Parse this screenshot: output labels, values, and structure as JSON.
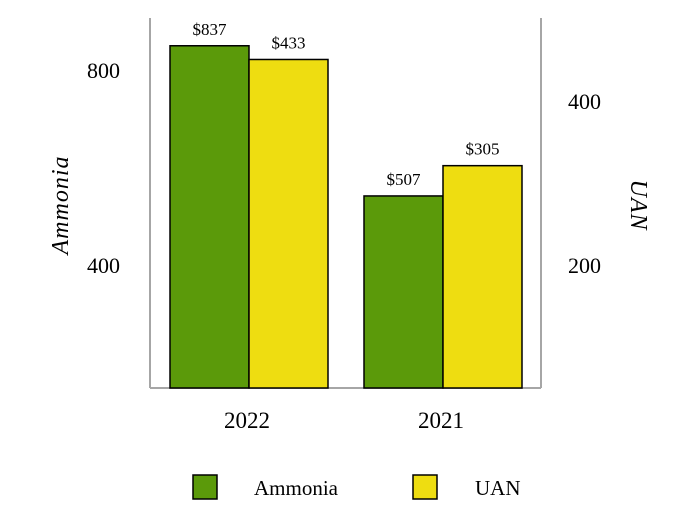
{
  "chart_data": {
    "type": "bar",
    "categories": [
      "2022",
      "2021"
    ],
    "series": [
      {
        "name": "Ammonia",
        "values": [
          837,
          507
        ],
        "labels": [
          "$837",
          "$507"
        ],
        "color": "#5b9a0a",
        "axis": "left"
      },
      {
        "name": "UAN",
        "values": [
          433,
          305
        ],
        "labels": [
          "$433",
          "$305"
        ],
        "color": "#eedd11",
        "axis": "right"
      }
    ],
    "y_left": {
      "label": "Ammonia",
      "ticks": [
        "400",
        "800"
      ],
      "tick_values": [
        400,
        800
      ],
      "range": [
        85,
        898
      ]
    },
    "y_right": {
      "label": "UAN",
      "ticks": [
        "200",
        "400"
      ],
      "tick_values": [
        200,
        400
      ],
      "range": [
        37,
        483
      ]
    },
    "legend": {
      "position": "bottom",
      "items": [
        "Ammonia",
        "UAN"
      ]
    },
    "grid": false
  }
}
